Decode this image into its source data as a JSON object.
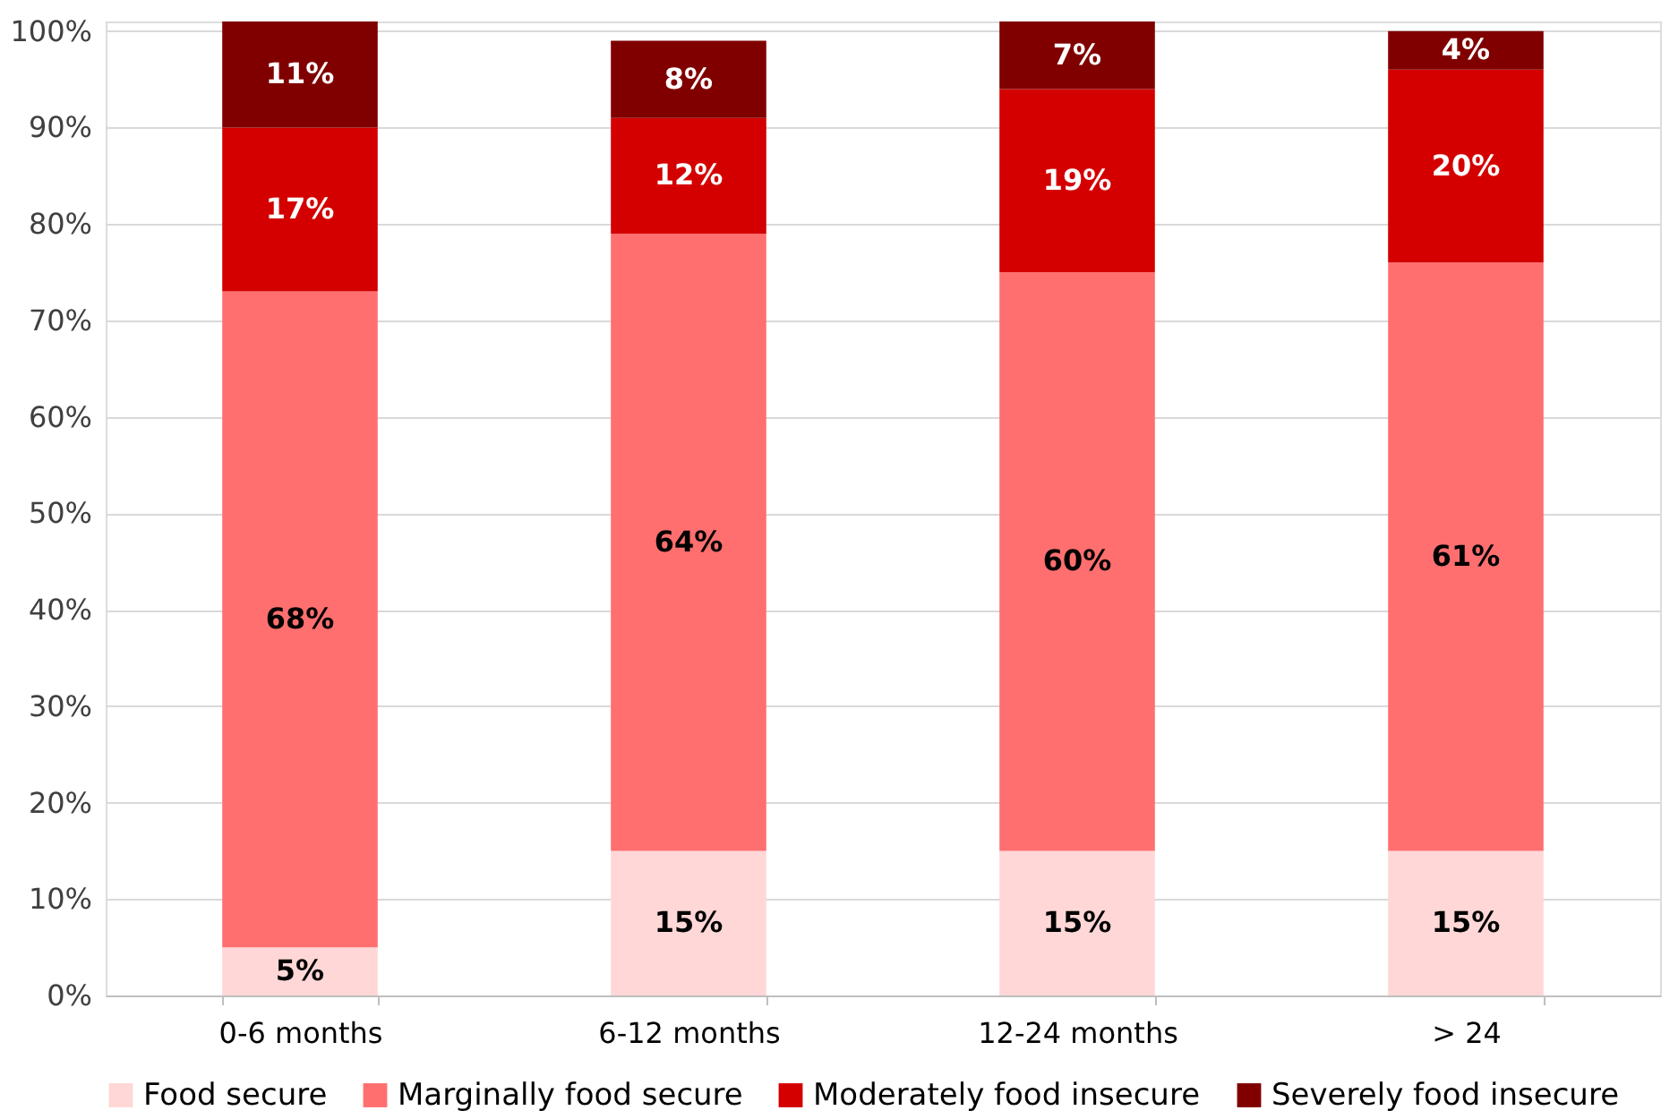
{
  "chart_data": {
    "type": "bar",
    "stacked": true,
    "categories": [
      "0-6 months",
      "6-12 months",
      "12-24 months",
      "> 24"
    ],
    "series": [
      {
        "name": "Food secure",
        "color": "#ffd7d7",
        "values": [
          5,
          15,
          15,
          15
        ],
        "value_labels": [
          "5%",
          "15%",
          "15%",
          "15%"
        ]
      },
      {
        "name": "Marginally food secure",
        "color": "#ff6f6f",
        "values": [
          68,
          64,
          60,
          61
        ],
        "value_labels": [
          "68%",
          "64%",
          "60%",
          "61%"
        ]
      },
      {
        "name": "Moderately food insecure",
        "color": "#d40000",
        "values": [
          17,
          12,
          19,
          20
        ],
        "value_labels": [
          "17%",
          "12%",
          "19%",
          "20%"
        ]
      },
      {
        "name": "Severely food insecure",
        "color": "#800000",
        "values": [
          11,
          8,
          7,
          4
        ],
        "value_labels": [
          "11%",
          "8%",
          "7%",
          "4%"
        ]
      }
    ],
    "ylim": [
      0,
      101
    ],
    "yticks": [
      {
        "value": 0,
        "label": "0%"
      },
      {
        "value": 10,
        "label": "10%"
      },
      {
        "value": 20,
        "label": "20%"
      },
      {
        "value": 30,
        "label": "30%"
      },
      {
        "value": 40,
        "label": "40%"
      },
      {
        "value": 50,
        "label": "50%"
      },
      {
        "value": 60,
        "label": "60%"
      },
      {
        "value": 70,
        "label": "70%"
      },
      {
        "value": 80,
        "label": "80%"
      },
      {
        "value": 90,
        "label": "90%"
      },
      {
        "value": 100,
        "label": "100%"
      }
    ],
    "grid": "y",
    "legend": "bottom"
  }
}
